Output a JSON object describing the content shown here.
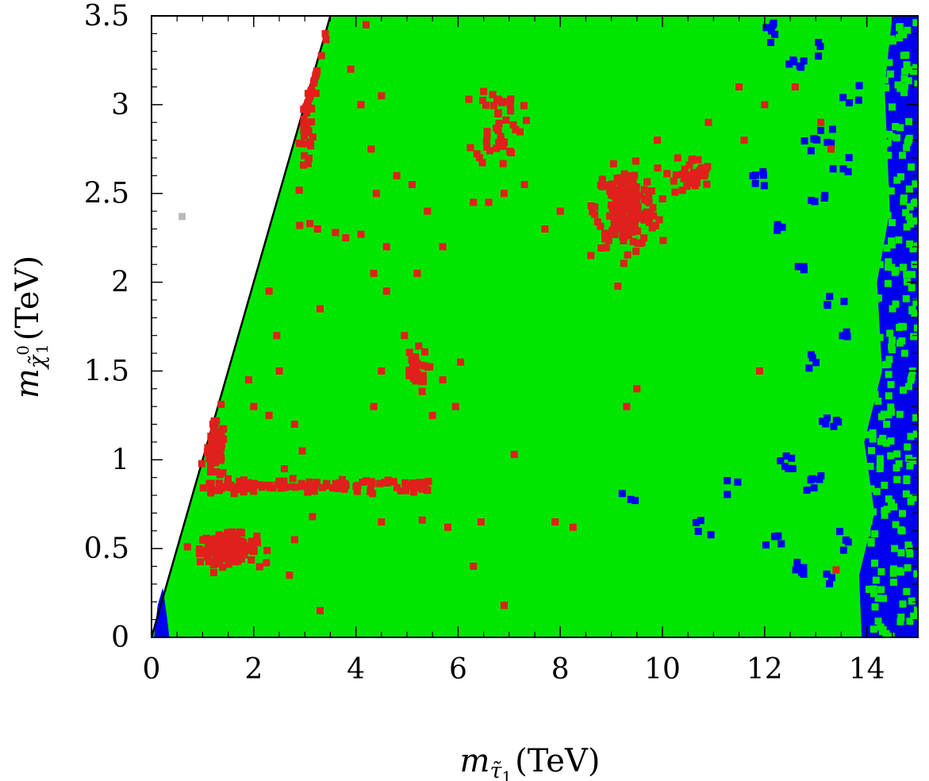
{
  "chart_data": {
    "type": "scatter",
    "title": "",
    "xlabel": {
      "base": "m",
      "sub_main": "τ̃",
      "sub_index": "1",
      "unit": "(TeV)"
    },
    "ylabel": {
      "base": "m",
      "sub_main": "χ̃",
      "sub_sup": "0",
      "sub_index": "1",
      "unit": "(TeV)"
    },
    "xlim": [
      0,
      15
    ],
    "ylim": [
      0,
      3.5
    ],
    "x_ticks": [
      0,
      2,
      4,
      6,
      8,
      10,
      12,
      14
    ],
    "x_tick_labels": [
      "0",
      "2",
      "4",
      "6",
      "8",
      "10",
      "12",
      "14"
    ],
    "y_ticks": [
      0,
      0.5,
      1,
      1.5,
      2,
      2.5,
      3,
      3.5
    ],
    "y_tick_labels": [
      "0",
      "0.5",
      "1",
      "1.5",
      "2",
      "2.5",
      "3",
      "3.5"
    ],
    "grid": false,
    "legend": "none",
    "boundary_line": {
      "points": [
        [
          0,
          0
        ],
        [
          3.5,
          3.5
        ]
      ],
      "description": "m_chi = m_stau"
    },
    "series": [
      {
        "color": "#00e600",
        "fill_region": [
          [
            0,
            0
          ],
          [
            3.5,
            3.5
          ],
          [
            15,
            3.5
          ],
          [
            15,
            0
          ]
        ]
      },
      {
        "color": "#0000ee",
        "regions": [
          [
            [
              13.9,
              0
            ],
            [
              15,
              0
            ],
            [
              15,
              3.5
            ],
            [
              14.5,
              3.5
            ],
            [
              14.35,
              3.1
            ],
            [
              14.45,
              2.4
            ],
            [
              14.2,
              2.0
            ],
            [
              14.3,
              1.5
            ],
            [
              13.95,
              1.1
            ],
            [
              14.15,
              0.7
            ],
            [
              13.85,
              0.35
            ]
          ],
          [
            [
              0.05,
              0
            ],
            [
              0.35,
              0
            ],
            [
              0.3,
              0.12
            ],
            [
              0.22,
              0.28
            ],
            [
              0.12,
              0.18
            ]
          ]
        ],
        "points": [
          [
            12.85,
            2.78
          ],
          [
            13.2,
            2.82
          ],
          [
            13.1,
            3.3
          ],
          [
            12.6,
            3.25
          ],
          [
            13.05,
            2.45
          ],
          [
            12.7,
            2.1
          ],
          [
            13.4,
            1.9
          ],
          [
            12.9,
            1.55
          ],
          [
            13.6,
            1.7
          ],
          [
            13.3,
            1.2
          ],
          [
            12.4,
            1.0
          ],
          [
            13.0,
            0.85
          ],
          [
            12.2,
            0.55
          ],
          [
            12.7,
            0.4
          ],
          [
            13.2,
            0.3
          ],
          [
            13.6,
            0.55
          ],
          [
            11.4,
            0.85
          ],
          [
            10.8,
            0.6
          ],
          [
            9.3,
            0.8
          ],
          [
            11.9,
            2.6
          ],
          [
            12.3,
            2.3
          ],
          [
            13.5,
            2.65
          ],
          [
            13.7,
            3.05
          ],
          [
            12.1,
            3.4
          ]
        ]
      },
      {
        "color": "#e0201c",
        "clusters": [
          {
            "cx": 1.5,
            "cy": 0.5,
            "sx": 0.55,
            "sy": 0.04,
            "n": 170
          },
          {
            "cx": 1.25,
            "cy": 1.05,
            "sx": 0.2,
            "sy": 0.08,
            "n": 60
          },
          {
            "cx": 3.05,
            "cy": 2.95,
            "sx": 0.14,
            "sy": 0.17,
            "n": 55
          },
          {
            "cx": 9.3,
            "cy": 2.42,
            "sx": 0.6,
            "sy": 0.11,
            "n": 190
          },
          {
            "cx": 10.6,
            "cy": 2.6,
            "sx": 0.35,
            "sy": 0.05,
            "n": 35
          },
          {
            "cx": 6.8,
            "cy": 2.9,
            "sx": 0.45,
            "sy": 0.12,
            "n": 45
          },
          {
            "cx": 5.15,
            "cy": 1.5,
            "sx": 0.25,
            "sy": 0.06,
            "n": 30
          }
        ],
        "band": {
          "x0": 1.0,
          "x1": 5.6,
          "y": 0.85,
          "sy": 0.02,
          "n": 110
        },
        "points": [
          [
            2.9,
            2.32
          ],
          [
            3.1,
            2.33
          ],
          [
            3.25,
            2.3
          ],
          [
            3.6,
            2.28
          ],
          [
            3.8,
            2.25
          ],
          [
            4.1,
            2.27
          ],
          [
            4.6,
            2.2
          ],
          [
            4.4,
            2.5
          ],
          [
            4.8,
            2.6
          ],
          [
            4.3,
            2.75
          ],
          [
            4.1,
            3.0
          ],
          [
            4.5,
            3.05
          ],
          [
            3.9,
            3.2
          ],
          [
            3.4,
            3.4
          ],
          [
            4.2,
            3.45
          ],
          [
            5.1,
            2.55
          ],
          [
            5.4,
            2.4
          ],
          [
            5.7,
            2.2
          ],
          [
            6.3,
            2.45
          ],
          [
            6.9,
            2.5
          ],
          [
            7.3,
            2.55
          ],
          [
            7.7,
            2.3
          ],
          [
            8.0,
            2.4
          ],
          [
            9.9,
            2.8
          ],
          [
            10.3,
            2.7
          ],
          [
            10.9,
            2.9
          ],
          [
            11.6,
            2.8
          ],
          [
            12.0,
            3.0
          ],
          [
            12.6,
            3.1
          ],
          [
            13.1,
            2.9
          ],
          [
            13.3,
            2.75
          ],
          [
            11.5,
            3.1
          ],
          [
            2.3,
            1.95
          ],
          [
            2.45,
            1.7
          ],
          [
            1.9,
            1.45
          ],
          [
            2.0,
            1.3
          ],
          [
            2.3,
            1.25
          ],
          [
            2.5,
            1.5
          ],
          [
            2.8,
            1.2
          ],
          [
            2.95,
            1.05
          ],
          [
            2.6,
            0.95
          ],
          [
            3.15,
            0.68
          ],
          [
            2.8,
            0.55
          ],
          [
            2.7,
            0.35
          ],
          [
            3.3,
            1.85
          ],
          [
            3.3,
            0.15
          ],
          [
            4.35,
            1.3
          ],
          [
            4.5,
            1.5
          ],
          [
            5.5,
            1.25
          ],
          [
            5.7,
            1.45
          ],
          [
            6.05,
            1.55
          ],
          [
            5.95,
            1.3
          ],
          [
            6.45,
            0.65
          ],
          [
            6.3,
            0.4
          ],
          [
            6.9,
            0.18
          ],
          [
            7.1,
            1.03
          ],
          [
            7.9,
            0.65
          ],
          [
            8.25,
            0.62
          ],
          [
            9.5,
            1.4
          ],
          [
            9.3,
            1.3
          ],
          [
            11.9,
            1.5
          ],
          [
            13.4,
            0.38
          ],
          [
            5.3,
            0.66
          ],
          [
            5.8,
            0.62
          ],
          [
            4.5,
            0.65
          ],
          [
            4.95,
            1.7
          ],
          [
            4.6,
            1.95
          ],
          [
            4.35,
            2.05
          ],
          [
            5.2,
            2.05
          ],
          [
            6.6,
            2.45
          ],
          [
            8.6,
            2.15
          ]
        ]
      },
      {
        "color": "#bbbbbb",
        "points": [
          [
            0.6,
            2.37
          ]
        ]
      }
    ]
  }
}
